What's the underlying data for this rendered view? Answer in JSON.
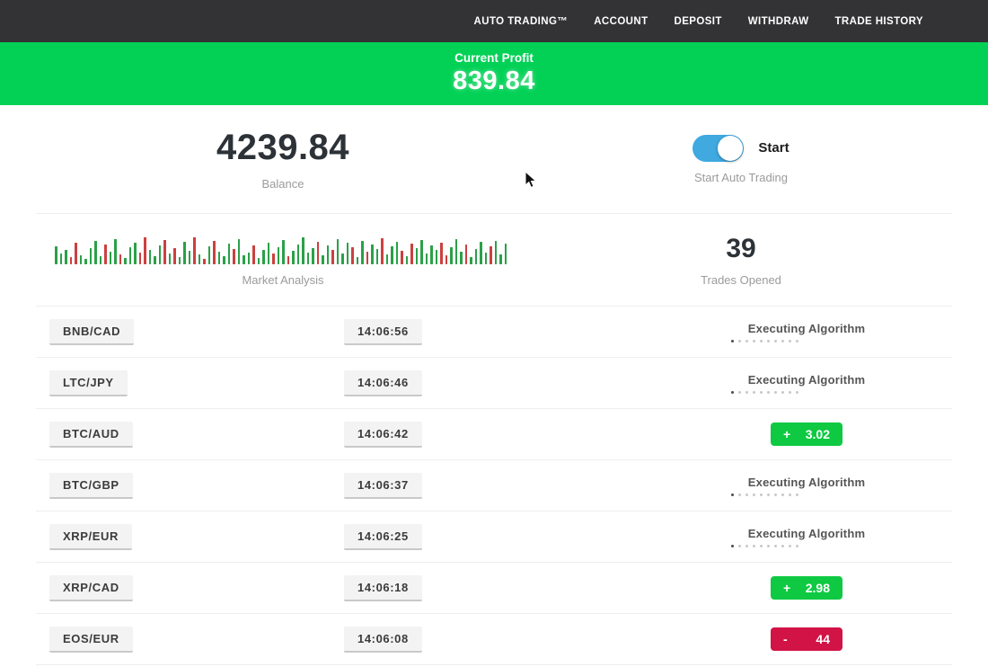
{
  "nav": {
    "items": [
      "AUTO TRADING™",
      "ACCOUNT",
      "DEPOSIT",
      "WITHDRAW",
      "TRADE HISTORY"
    ]
  },
  "banner": {
    "label": "Current Profit",
    "value": "839.84"
  },
  "stats": {
    "balance": {
      "value": "4239.84",
      "label": "Balance"
    },
    "auto_trading": {
      "toggle_label": "Start",
      "caption": "Start Auto Trading",
      "state": "on"
    },
    "market_analysis": {
      "label": "Market Analysis"
    },
    "trades_opened": {
      "value": "39",
      "label": "Trades Opened"
    }
  },
  "chart_data": {
    "type": "bar",
    "title": "Market Analysis",
    "note": "decorative mini candlestick-style volume bars, green=up red=down, heights in px",
    "bars": [
      [
        20,
        "g"
      ],
      [
        12,
        "g"
      ],
      [
        16,
        "g"
      ],
      [
        8,
        "r"
      ],
      [
        24,
        "r"
      ],
      [
        10,
        "g"
      ],
      [
        6,
        "g"
      ],
      [
        18,
        "g"
      ],
      [
        26,
        "g"
      ],
      [
        9,
        "g"
      ],
      [
        22,
        "r"
      ],
      [
        14,
        "g"
      ],
      [
        28,
        "g"
      ],
      [
        11,
        "r"
      ],
      [
        7,
        "g"
      ],
      [
        19,
        "g"
      ],
      [
        24,
        "g"
      ],
      [
        13,
        "r"
      ],
      [
        30,
        "r"
      ],
      [
        16,
        "g"
      ],
      [
        9,
        "g"
      ],
      [
        21,
        "g"
      ],
      [
        27,
        "r"
      ],
      [
        12,
        "g"
      ],
      [
        18,
        "r"
      ],
      [
        8,
        "g"
      ],
      [
        25,
        "g"
      ],
      [
        15,
        "g"
      ],
      [
        30,
        "r"
      ],
      [
        11,
        "g"
      ],
      [
        6,
        "r"
      ],
      [
        20,
        "g"
      ],
      [
        26,
        "r"
      ],
      [
        14,
        "g"
      ],
      [
        9,
        "g"
      ],
      [
        23,
        "g"
      ],
      [
        17,
        "r"
      ],
      [
        28,
        "g"
      ],
      [
        10,
        "g"
      ],
      [
        13,
        "g"
      ],
      [
        21,
        "r"
      ],
      [
        7,
        "g"
      ],
      [
        16,
        "g"
      ],
      [
        24,
        "g"
      ],
      [
        12,
        "r"
      ],
      [
        19,
        "g"
      ],
      [
        27,
        "g"
      ],
      [
        9,
        "r"
      ],
      [
        15,
        "g"
      ],
      [
        22,
        "g"
      ],
      [
        30,
        "g"
      ],
      [
        13,
        "g"
      ],
      [
        18,
        "g"
      ],
      [
        25,
        "r"
      ],
      [
        10,
        "g"
      ],
      [
        21,
        "g"
      ],
      [
        16,
        "r"
      ],
      [
        28,
        "g"
      ],
      [
        12,
        "g"
      ],
      [
        24,
        "g"
      ],
      [
        19,
        "r"
      ],
      [
        8,
        "g"
      ],
      [
        26,
        "g"
      ],
      [
        14,
        "r"
      ],
      [
        22,
        "g"
      ],
      [
        17,
        "g"
      ],
      [
        29,
        "r"
      ],
      [
        11,
        "g"
      ],
      [
        20,
        "g"
      ],
      [
        25,
        "g"
      ],
      [
        15,
        "r"
      ],
      [
        9,
        "g"
      ],
      [
        23,
        "r"
      ],
      [
        18,
        "g"
      ],
      [
        27,
        "g"
      ],
      [
        12,
        "g"
      ],
      [
        21,
        "g"
      ],
      [
        16,
        "g"
      ],
      [
        24,
        "r"
      ],
      [
        10,
        "r"
      ],
      [
        19,
        "g"
      ],
      [
        28,
        "g"
      ],
      [
        14,
        "g"
      ],
      [
        22,
        "r"
      ],
      [
        8,
        "g"
      ],
      [
        17,
        "g"
      ],
      [
        25,
        "g"
      ],
      [
        13,
        "g"
      ],
      [
        20,
        "r"
      ],
      [
        26,
        "g"
      ],
      [
        11,
        "g"
      ],
      [
        23,
        "g"
      ]
    ]
  },
  "trades": {
    "executing_label": "Executing Algorithm",
    "rows": [
      {
        "pair": "BNB/CAD",
        "time": "14:06:56",
        "status": "executing",
        "sign": "",
        "amount": ""
      },
      {
        "pair": "LTC/JPY",
        "time": "14:06:46",
        "status": "executing",
        "sign": "",
        "amount": ""
      },
      {
        "pair": "BTC/AUD",
        "time": "14:06:42",
        "status": "profit",
        "sign": "+",
        "amount": "3.02"
      },
      {
        "pair": "BTC/GBP",
        "time": "14:06:37",
        "status": "executing",
        "sign": "",
        "amount": ""
      },
      {
        "pair": "XRP/EUR",
        "time": "14:06:25",
        "status": "executing",
        "sign": "",
        "amount": ""
      },
      {
        "pair": "XRP/CAD",
        "time": "14:06:18",
        "status": "profit",
        "sign": "+",
        "amount": "2.98"
      },
      {
        "pair": "EOS/EUR",
        "time": "14:06:08",
        "status": "loss",
        "sign": "-",
        "amount": "44"
      }
    ]
  },
  "colors": {
    "nav_bg": "#333234",
    "banner_green": "#02d156",
    "toggle_blue": "#3fa9e0",
    "profit_green": "#0fc943",
    "loss_red": "#d11345"
  }
}
